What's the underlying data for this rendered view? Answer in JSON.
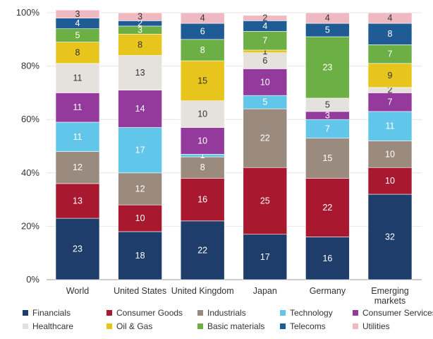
{
  "chart_data": {
    "type": "bar",
    "stacked": true,
    "percent": true,
    "categories": [
      "World",
      "United States",
      "United Kingdom",
      "Japan",
      "Germany",
      "Emerging markets"
    ],
    "y_ticks": [
      "0%",
      "20%",
      "40%",
      "60%",
      "80%",
      "100%"
    ],
    "ylim": [
      0,
      100
    ],
    "legend_position": "bottom",
    "series": [
      {
        "name": "Financials",
        "color": "#1f3d6b",
        "values": [
          23,
          18,
          22,
          17,
          16,
          32
        ]
      },
      {
        "name": "Consumer Goods",
        "color": "#a8182e",
        "values": [
          13,
          10,
          16,
          25,
          22,
          10
        ]
      },
      {
        "name": "Industrials",
        "color": "#9b8b7e",
        "values": [
          12,
          12,
          8,
          22,
          15,
          10
        ]
      },
      {
        "name": "Technology",
        "color": "#62c6ea",
        "values": [
          11,
          17,
          1,
          5,
          7,
          11
        ]
      },
      {
        "name": "Consumer Services",
        "color": "#933a9c",
        "values": [
          11,
          14,
          10,
          10,
          3,
          7
        ]
      },
      {
        "name": "Healthcare",
        "color": "#e5e2de",
        "values": [
          11,
          13,
          10,
          6,
          5,
          2
        ]
      },
      {
        "name": "Oil & Gas",
        "color": "#e8c51c",
        "values": [
          8,
          8,
          15,
          1,
          0,
          9
        ]
      },
      {
        "name": "Basic materials",
        "color": "#6caf45",
        "values": [
          5,
          3,
          8,
          7,
          23,
          7
        ]
      },
      {
        "name": "Telecoms",
        "color": "#1f5c96",
        "values": [
          4,
          2,
          6,
          4,
          5,
          8
        ]
      },
      {
        "name": "Utilities",
        "color": "#efb9c1",
        "values": [
          3,
          3,
          4,
          2,
          4,
          4
        ]
      }
    ]
  }
}
